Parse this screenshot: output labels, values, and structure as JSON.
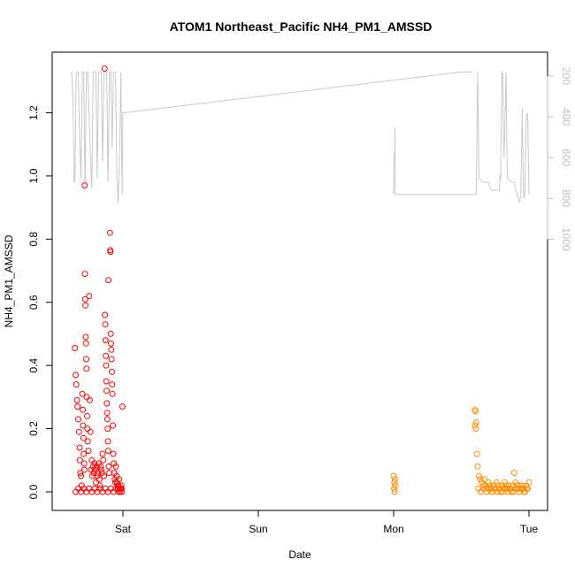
{
  "chart_data": {
    "type": "scatter",
    "title": "ATOM1 Northeast_Pacific NH4_PM1_AMSSD",
    "xlabel": "Date",
    "ylabel": "NH4_PM1_AMSSD",
    "x_ticks": [
      "Sat",
      "Sun",
      "Mon",
      "Tue"
    ],
    "ylim": [
      -0.05,
      1.4
    ],
    "y_ticks": [
      "0.0",
      "0.2",
      "0.4",
      "0.6",
      "0.8",
      "1.0",
      "1.2"
    ],
    "y2_range_reversed": [
      180,
      1060
    ],
    "y2_ticks": [
      "200",
      "400",
      "600",
      "800",
      "1000"
    ],
    "colors": {
      "series1": "#ff0000",
      "series2": "#ff8c00",
      "pressure_line": "#c8c8c8",
      "right_axis": "#bdbdbd"
    },
    "series": [
      {
        "color": "#ff0000",
        "points": [
          [
            -0.355,
            0.455
          ],
          [
            -0.35,
            0.37
          ],
          [
            -0.345,
            0.34
          ],
          [
            -0.34,
            0.29
          ],
          [
            -0.335,
            0.27
          ],
          [
            -0.33,
            0.23
          ],
          [
            -0.325,
            0.19
          ],
          [
            -0.32,
            0.14
          ],
          [
            -0.318,
            0.1
          ],
          [
            -0.315,
            0.06
          ],
          [
            -0.31,
            0.05
          ],
          [
            -0.305,
            0.02
          ],
          [
            -0.3,
            0.31
          ],
          [
            -0.297,
            0.26
          ],
          [
            -0.295,
            0.21
          ],
          [
            -0.292,
            0.17
          ],
          [
            -0.29,
            0.12
          ],
          [
            -0.287,
            0.09
          ],
          [
            -0.285,
            0.07
          ],
          [
            -0.283,
            0.97
          ],
          [
            -0.281,
            0.69
          ],
          [
            -0.279,
            0.61
          ],
          [
            -0.277,
            0.59
          ],
          [
            -0.275,
            0.49
          ],
          [
            -0.273,
            0.47
          ],
          [
            -0.271,
            0.42
          ],
          [
            -0.269,
            0.39
          ],
          [
            -0.267,
            0.3
          ],
          [
            -0.265,
            0.24
          ],
          [
            -0.263,
            0.2
          ],
          [
            -0.26,
            0.16
          ],
          [
            -0.255,
            0.13
          ],
          [
            -0.25,
            0.62
          ],
          [
            -0.245,
            0.29
          ],
          [
            -0.24,
            0.19
          ],
          [
            -0.235,
            0.07
          ],
          [
            -0.23,
            0.1
          ],
          [
            -0.225,
            0.05
          ],
          [
            -0.22,
            0.08
          ],
          [
            -0.215,
            0.06
          ],
          [
            -0.21,
            0.09
          ],
          [
            -0.205,
            0.07
          ],
          [
            -0.2,
            0.03
          ],
          [
            -0.195,
            0.08
          ],
          [
            -0.19,
            0.05
          ],
          [
            -0.185,
            0.06
          ],
          [
            -0.18,
            0.09
          ],
          [
            -0.175,
            0.04
          ],
          [
            -0.17,
            0.02
          ],
          [
            -0.165,
            0.08
          ],
          [
            -0.16,
            0.07
          ],
          [
            -0.155,
            0.06
          ],
          [
            -0.15,
            0.12
          ],
          [
            -0.145,
            0.1
          ],
          [
            -0.14,
            0.05
          ],
          [
            -0.135,
            1.34
          ],
          [
            -0.133,
            0.56
          ],
          [
            -0.131,
            0.53
          ],
          [
            -0.129,
            0.48
          ],
          [
            -0.127,
            0.43
          ],
          [
            -0.125,
            0.4
          ],
          [
            -0.123,
            0.35
          ],
          [
            -0.121,
            0.32
          ],
          [
            -0.119,
            0.28
          ],
          [
            -0.117,
            0.25
          ],
          [
            -0.115,
            0.23
          ],
          [
            -0.113,
            0.2
          ],
          [
            -0.111,
            0.16
          ],
          [
            -0.109,
            0.13
          ],
          [
            -0.107,
            0.67
          ],
          [
            -0.105,
            0.08
          ],
          [
            -0.1,
            0.06
          ],
          [
            -0.096,
            0.82
          ],
          [
            -0.094,
            0.765
          ],
          [
            -0.092,
            0.76
          ],
          [
            -0.09,
            0.5
          ],
          [
            -0.088,
            0.47
          ],
          [
            -0.086,
            0.45
          ],
          [
            -0.084,
            0.42
          ],
          [
            -0.082,
            0.38
          ],
          [
            -0.08,
            0.34
          ],
          [
            -0.078,
            0.31
          ],
          [
            -0.075,
            0.21
          ],
          [
            -0.072,
            0.12
          ],
          [
            -0.068,
            0.09
          ],
          [
            -0.064,
            0.06
          ],
          [
            -0.06,
            0.04
          ],
          [
            -0.056,
            0.03
          ],
          [
            -0.052,
            0.08
          ],
          [
            -0.048,
            0.05
          ],
          [
            -0.044,
            0.03
          ],
          [
            -0.04,
            0.02
          ],
          [
            -0.036,
            0.01
          ],
          [
            -0.032,
            0.02
          ],
          [
            -0.028,
            0.04
          ],
          [
            -0.024,
            0.01
          ],
          [
            -0.02,
            0.0
          ],
          [
            -0.016,
            0.01
          ],
          [
            -0.012,
            0.02
          ],
          [
            -0.008,
            0.0
          ],
          [
            -0.004,
            0.27
          ],
          [
            -0.35,
            0.0
          ],
          [
            -0.33,
            0.01
          ],
          [
            -0.31,
            0.0
          ],
          [
            -0.29,
            0.01
          ],
          [
            -0.27,
            0.0
          ],
          [
            -0.25,
            0.01
          ],
          [
            -0.23,
            0.0
          ],
          [
            -0.21,
            0.01
          ],
          [
            -0.19,
            0.0
          ],
          [
            -0.17,
            0.01
          ],
          [
            -0.15,
            0.0
          ],
          [
            -0.13,
            0.01
          ],
          [
            -0.11,
            0.0
          ],
          [
            -0.09,
            0.01
          ],
          [
            -0.07,
            0.0
          ],
          [
            -0.05,
            0.01
          ],
          [
            -0.03,
            0.0
          ],
          [
            -0.01,
            0.01
          ]
        ]
      },
      {
        "color": "#ff8c00",
        "points": [
          [
            2.0,
            0.05
          ],
          [
            2.005,
            0.03
          ],
          [
            2.01,
            0.04
          ],
          [
            2.003,
            0.01
          ],
          [
            2.007,
            0.0
          ],
          [
            2.012,
            0.02
          ],
          [
            2.6,
            0.26
          ],
          [
            2.605,
            0.255
          ],
          [
            2.61,
            0.22
          ],
          [
            2.602,
            0.21
          ],
          [
            2.607,
            0.2
          ],
          [
            2.615,
            0.12
          ],
          [
            2.62,
            0.08
          ],
          [
            2.63,
            0.05
          ],
          [
            2.64,
            0.04
          ],
          [
            2.65,
            0.03
          ],
          [
            2.66,
            0.02
          ],
          [
            2.67,
            0.04
          ],
          [
            2.68,
            0.02
          ],
          [
            2.69,
            0.01
          ],
          [
            2.7,
            0.03
          ],
          [
            2.71,
            0.02
          ],
          [
            2.72,
            0.01
          ],
          [
            2.73,
            0.0
          ],
          [
            2.74,
            0.02
          ],
          [
            2.75,
            0.01
          ],
          [
            2.76,
            0.03
          ],
          [
            2.77,
            0.02
          ],
          [
            2.78,
            0.01
          ],
          [
            2.79,
            0.0
          ],
          [
            2.8,
            0.02
          ],
          [
            2.81,
            0.01
          ],
          [
            2.82,
            0.03
          ],
          [
            2.83,
            0.02
          ],
          [
            2.84,
            0.01
          ],
          [
            2.85,
            0.02
          ],
          [
            2.86,
            0.01
          ],
          [
            2.87,
            0.0
          ],
          [
            2.88,
            0.02
          ],
          [
            2.89,
            0.06
          ],
          [
            2.9,
            0.03
          ],
          [
            2.91,
            0.02
          ],
          [
            2.92,
            0.01
          ],
          [
            2.93,
            0.02
          ],
          [
            2.94,
            0.01
          ],
          [
            2.95,
            0.02
          ],
          [
            2.96,
            0.01
          ],
          [
            2.97,
            0.0
          ],
          [
            2.98,
            0.02
          ],
          [
            2.99,
            0.01
          ],
          [
            3.0,
            0.03
          ],
          [
            2.625,
            0.01
          ],
          [
            2.645,
            0.0
          ],
          [
            2.665,
            0.01
          ],
          [
            2.685,
            0.0
          ],
          [
            2.705,
            0.01
          ],
          [
            2.725,
            0.0
          ],
          [
            2.745,
            0.01
          ],
          [
            2.765,
            0.0
          ],
          [
            2.785,
            0.01
          ],
          [
            2.805,
            0.0
          ],
          [
            2.825,
            0.01
          ],
          [
            2.845,
            0.0
          ],
          [
            2.865,
            0.01
          ],
          [
            2.885,
            0.0
          ],
          [
            2.905,
            0.01
          ],
          [
            2.925,
            0.0
          ],
          [
            2.945,
            0.01
          ],
          [
            2.965,
            0.0
          ],
          [
            2.985,
            0.01
          ]
        ]
      }
    ],
    "pressure_line": [
      [
        -0.38,
        180
      ],
      [
        -0.37,
        300
      ],
      [
        -0.36,
        720
      ],
      [
        -0.355,
        720
      ],
      [
        -0.35,
        430
      ],
      [
        -0.345,
        180
      ],
      [
        -0.33,
        180
      ],
      [
        -0.32,
        520
      ],
      [
        -0.31,
        700
      ],
      [
        -0.3,
        180
      ],
      [
        -0.29,
        180
      ],
      [
        -0.28,
        750
      ],
      [
        -0.27,
        180
      ],
      [
        -0.26,
        180
      ],
      [
        -0.24,
        600
      ],
      [
        -0.23,
        750
      ],
      [
        -0.22,
        180
      ],
      [
        -0.2,
        180
      ],
      [
        -0.19,
        700
      ],
      [
        -0.18,
        180
      ],
      [
        -0.16,
        180
      ],
      [
        -0.15,
        620
      ],
      [
        -0.14,
        180
      ],
      [
        -0.12,
        180
      ],
      [
        -0.11,
        720
      ],
      [
        -0.1,
        180
      ],
      [
        -0.09,
        180
      ],
      [
        -0.08,
        550
      ],
      [
        -0.07,
        180
      ],
      [
        -0.055,
        180
      ],
      [
        -0.045,
        700
      ],
      [
        -0.035,
        820
      ],
      [
        -0.025,
        600
      ],
      [
        -0.015,
        180
      ],
      [
        -0.005,
        780
      ],
      [
        0.0,
        380
      ],
      [
        0.005,
        380
      ],
      [
        2.5,
        180
      ],
      [
        2.56,
        180
      ],
      [
        2.58,
        180
      ]
    ],
    "pressure_line_2": [
      [
        2.0,
        780
      ],
      [
        2.002,
        590
      ],
      [
        2.008,
        580
      ],
      [
        2.01,
        450
      ],
      [
        2.012,
        780
      ],
      [
        2.61,
        780
      ],
      [
        2.62,
        180
      ],
      [
        2.63,
        700
      ],
      [
        2.66,
        720
      ],
      [
        2.7,
        720
      ],
      [
        2.72,
        760
      ],
      [
        2.78,
        760
      ],
      [
        2.785,
        690
      ],
      [
        2.79,
        710
      ],
      [
        2.8,
        180
      ],
      [
        2.805,
        180
      ],
      [
        2.815,
        600
      ],
      [
        2.82,
        500
      ],
      [
        2.83,
        180
      ],
      [
        2.84,
        700
      ],
      [
        2.87,
        720
      ],
      [
        2.89,
        720
      ],
      [
        2.92,
        800
      ],
      [
        2.93,
        820
      ],
      [
        2.94,
        780
      ],
      [
        2.95,
        360
      ],
      [
        2.96,
        800
      ],
      [
        2.97,
        780
      ],
      [
        2.98,
        400
      ],
      [
        2.99,
        380
      ],
      [
        3.0,
        780
      ]
    ]
  }
}
